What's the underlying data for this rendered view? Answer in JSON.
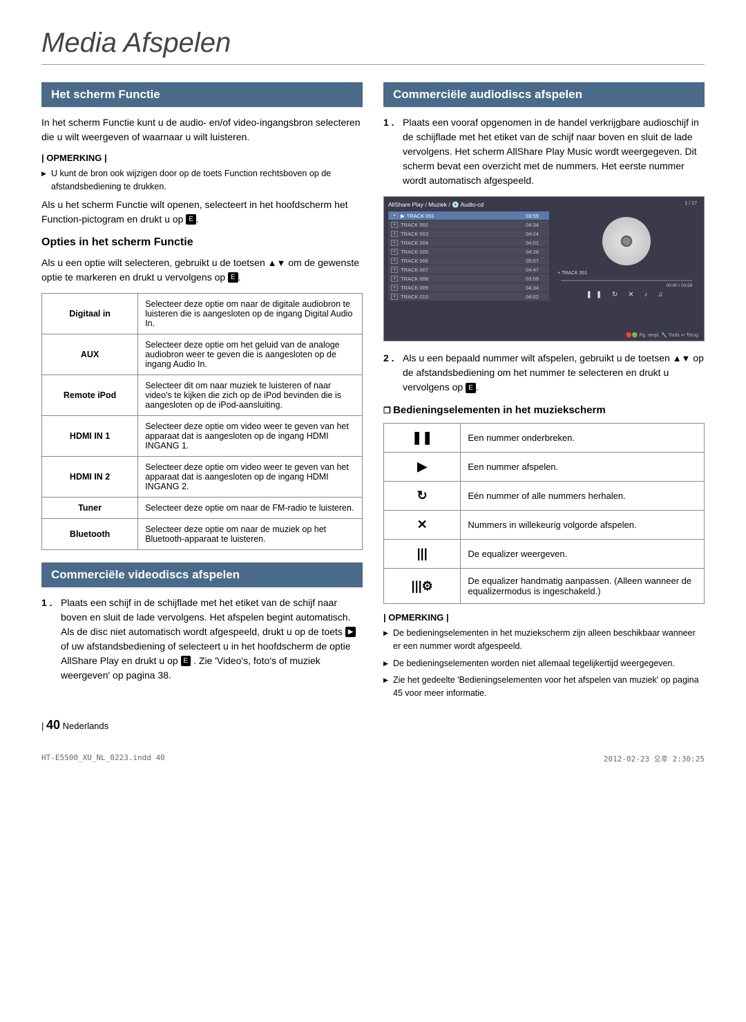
{
  "page": {
    "title": "Media Afspelen",
    "number": "40",
    "lang": "Nederlands",
    "docFile": "HT-E5500_XU_NL_0223.indd 40",
    "docDate": "2012-02-23 오후 2:30:25"
  },
  "left": {
    "sec1": {
      "heading": "Het scherm Functie",
      "p1": "In het scherm Functie kunt u de audio- en/of video-ingangsbron selecteren die u wilt weergeven of waarnaar u wilt luisteren.",
      "noteLabel": "| OPMERKING |",
      "note1": "U kunt de bron ook wijzigen door op de toets Function rechtsboven op de afstandsbediening te drukken.",
      "p2a": "Als u het scherm Functie wilt openen, selecteert in het hoofdscherm het Function-pictogram en drukt u op ",
      "p2b": "."
    },
    "opties": {
      "heading": "Opties in het scherm Functie",
      "p1a": "Als u een optie wilt selecteren, gebruikt u de toetsen ",
      "arrows": "▲▼",
      "p1b": " om de gewenste optie te markeren en drukt u vervolgens op ",
      "p1c": "."
    },
    "optTable": [
      {
        "label": "Digitaal in",
        "desc": "Selecteer deze optie om naar de digitale audiobron te luisteren die is aangesloten op de ingang Digital Audio In."
      },
      {
        "label": "AUX",
        "desc": "Selecteer deze optie om het geluid van de analoge audiobron weer te geven die is aangesloten op de ingang Audio In."
      },
      {
        "label": "Remote iPod",
        "desc": "Selecteer dit om naar muziek te luisteren of naar video's te kijken die zich op de iPod bevinden die is aangesloten op de iPod-aansluiting."
      },
      {
        "label": "HDMI IN 1",
        "desc": "Selecteer deze optie om video weer te geven van het apparaat dat is aangesloten op de ingang HDMI INGANG 1."
      },
      {
        "label": "HDMI IN 2",
        "desc": "Selecteer deze optie om video weer te geven van het apparaat dat is aangesloten op de ingang HDMI INGANG 2."
      },
      {
        "label": "Tuner",
        "desc": "Selecteer deze optie om naar de FM-radio te luisteren."
      },
      {
        "label": "Bluetooth",
        "desc": "Selecteer deze optie om naar de muziek op het Bluetooth-apparaat te luisteren."
      }
    ],
    "video": {
      "heading": "Commerciële videodiscs afspelen",
      "item1a": "Plaats een schijf in de schijflade met het etiket van de schijf naar boven en sluit de lade vervolgens. Het afspelen begint automatisch. Als de disc niet automatisch wordt afgespeeld, drukt u op de toets ",
      "item1b": " of uw afstandsbediening of selecteert u in het hoofdscherm de optie AllShare Play en drukt u op ",
      "item1c": ". Zie 'Video's, foto's of muziek weergeven' op pagina 38."
    }
  },
  "right": {
    "audio": {
      "heading": "Commerciële audiodiscs afspelen",
      "item1": "Plaats een vooraf opgenomen in de handel verkrijgbare audioschijf in de schijflade met het etiket van de schijf naar boven en sluit de lade vervolgens. Het scherm AllShare Play Music wordt weergegeven. Dit scherm bevat een overzicht met de nummers. Het eerste nummer wordt automatisch afgespeeld."
    },
    "player": {
      "breadcrumb": "AllShare Play / Muziek / 💿 Audio-cd",
      "counter": "1 / 17",
      "tracks": [
        {
          "name": "TRACK 001",
          "time": "03:59",
          "active": true
        },
        {
          "name": "TRACK 002",
          "time": "04:34"
        },
        {
          "name": "TRACK 003",
          "time": "04:24"
        },
        {
          "name": "TRACK 004",
          "time": "04:01"
        },
        {
          "name": "TRACK 005",
          "time": "04:26"
        },
        {
          "name": "TRACK 006",
          "time": "05:07"
        },
        {
          "name": "TRACK 007",
          "time": "04:47"
        },
        {
          "name": "TRACK 008",
          "time": "03:59"
        },
        {
          "name": "TRACK 009",
          "time": "04:34"
        },
        {
          "name": "TRACK 010",
          "time": "04:02"
        }
      ],
      "nowPlaying": "+ TRACK 001",
      "timeRow": "00:00 / 03:59",
      "icons": "❚❚ ↻ ✕ ♪ ♫",
      "footer": "🔴🟢 Pg. verpl.  🔧 Tools  ↩ Terug"
    },
    "item2": {
      "a": "Als u een bepaald nummer wilt afspelen, gebruikt u de toetsen ",
      "arrows": "▲▼",
      "b": " op de afstandsbediening om het nummer te selecteren en drukt u vervolgens op ",
      "c": "."
    },
    "controls": {
      "heading": "Bedieningselementen in het muziekscherm",
      "rows": [
        {
          "icon": "❚❚",
          "desc": "Een nummer onderbreken."
        },
        {
          "icon": "▶",
          "desc": "Een nummer afspelen."
        },
        {
          "icon": "↻",
          "desc": "Eén nummer of alle nummers herhalen."
        },
        {
          "icon": "✕",
          "desc": "Nummers in willekeurig volgorde afspelen."
        },
        {
          "icon": "|||",
          "desc": "De equalizer weergeven."
        },
        {
          "icon": "|||⚙",
          "desc": "De equalizer handmatig aanpassen. (Alleen wanneer de equalizermodus is ingeschakeld.)"
        }
      ]
    },
    "note": {
      "label": "| OPMERKING |",
      "n1": "De bedieningselementen in het muziekscherm zijn alleen beschikbaar wanneer er een nummer wordt afgespeeld.",
      "n2": "De bedieningselementen worden niet allemaal tegelijkertijd weergegeven.",
      "n3": "Zie het gedeelte 'Bedieningselementen voor het afspelen van muziek' op pagina 45 voor meer informatie."
    }
  },
  "iconLabels": {
    "enter": "E",
    "play": "▶"
  }
}
